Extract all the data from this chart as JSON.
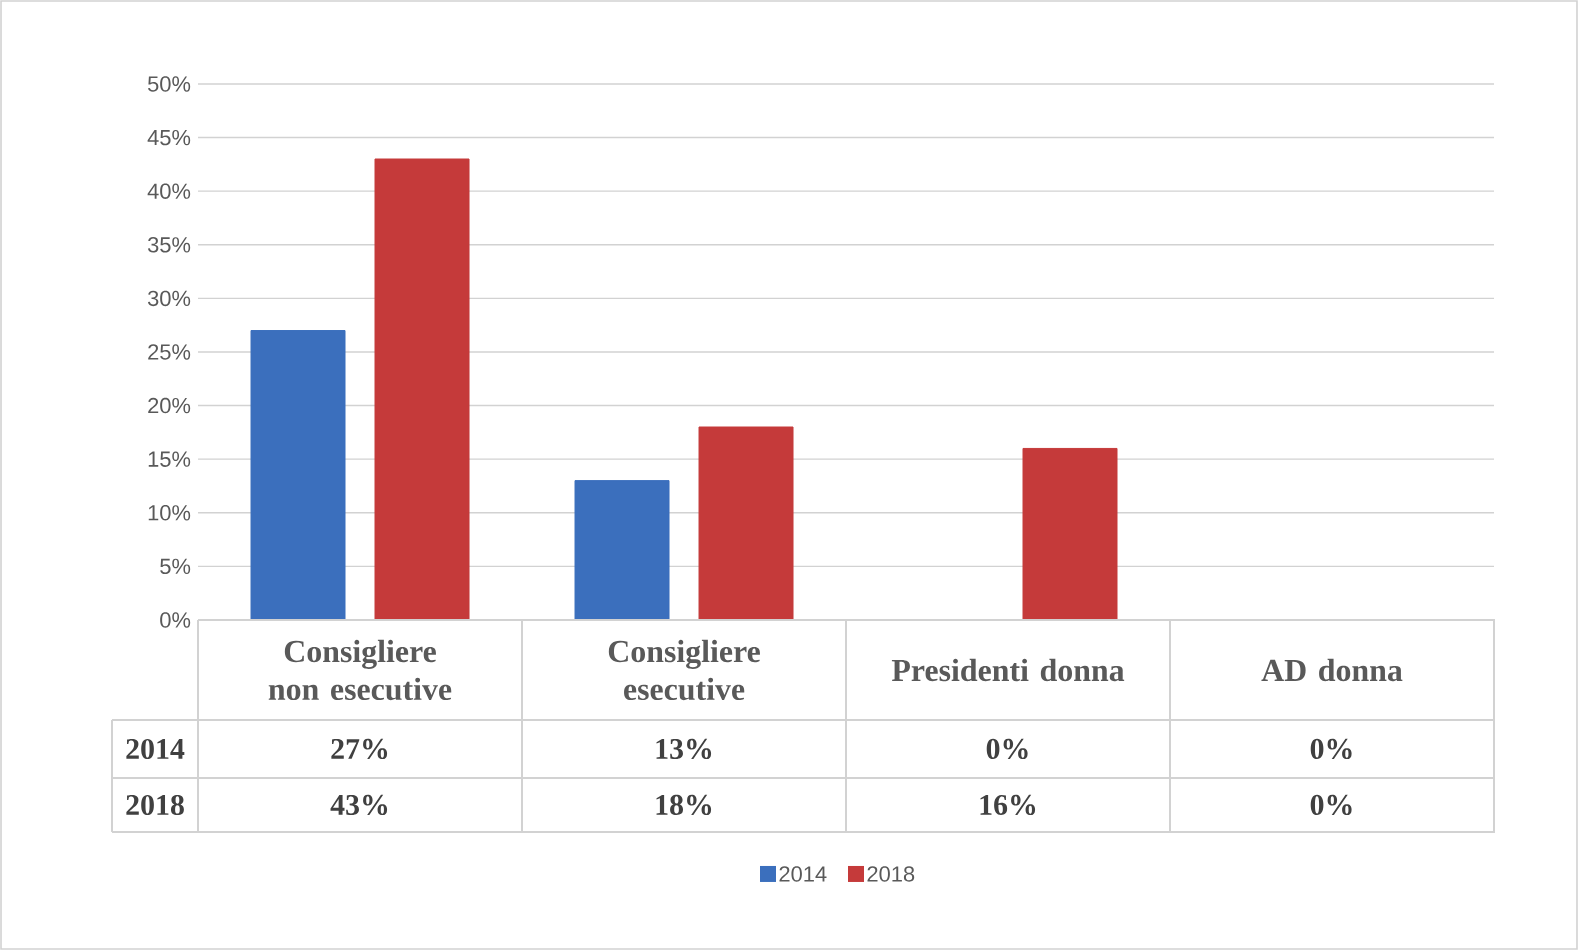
{
  "chart_data": {
    "type": "bar",
    "categories": [
      "Consigliere non esecutive",
      "Consigliere esecutive",
      "Presidenti donna",
      "AD donna"
    ],
    "series": [
      {
        "name": "2014",
        "color": "#3b6fbd",
        "values": [
          27,
          13,
          0,
          0
        ],
        "value_labels": [
          "27%",
          "13%",
          "0%",
          "0%"
        ]
      },
      {
        "name": "2018",
        "color": "#c53a3a",
        "values": [
          43,
          18,
          16,
          0
        ],
        "value_labels": [
          "43%",
          "18%",
          "16%",
          "0%"
        ]
      }
    ],
    "ylim": [
      0,
      50
    ],
    "yticks": [
      {
        "value": 0,
        "label": "0%"
      },
      {
        "value": 5,
        "label": "5%"
      },
      {
        "value": 10,
        "label": "10%"
      },
      {
        "value": 15,
        "label": "15%"
      },
      {
        "value": 20,
        "label": "20%"
      },
      {
        "value": 25,
        "label": "25%"
      },
      {
        "value": 30,
        "label": "30%"
      },
      {
        "value": 35,
        "label": "35%"
      },
      {
        "value": 40,
        "label": "40%"
      },
      {
        "value": 45,
        "label": "45%"
      },
      {
        "value": 50,
        "label": "50%"
      }
    ],
    "grid": "y",
    "legend": "bottom"
  }
}
